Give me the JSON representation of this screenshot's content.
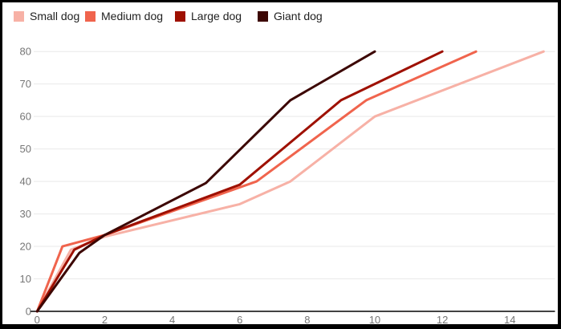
{
  "chart": {
    "background_color": "#ffffff",
    "frame_border_color": "#000000",
    "gridline_color": "#e9e9e9",
    "baseline_color": "#424242",
    "axis_text_color": "#757575",
    "legend_text_color": "#1f1f1f"
  },
  "chart_data": {
    "type": "line",
    "title": "",
    "xlabel": "",
    "ylabel": "",
    "legend_position": "top",
    "grid": "horizontal-only",
    "xlim": [
      0,
      15.35
    ],
    "ylim": [
      0,
      84.5
    ],
    "x_ticks": [
      0,
      2,
      4,
      6,
      8,
      10,
      12,
      14
    ],
    "y_ticks": [
      0,
      10,
      20,
      30,
      40,
      50,
      60,
      70,
      80
    ],
    "series": [
      {
        "name": "Small dog",
        "color": "#f7b1a6",
        "points": [
          [
            0,
            0
          ],
          [
            1,
            19
          ],
          [
            2,
            23
          ],
          [
            6,
            33
          ],
          [
            7.5,
            40
          ],
          [
            10,
            60
          ],
          [
            15,
            80
          ]
        ]
      },
      {
        "name": "Medium dog",
        "color": "#f0644d",
        "points": [
          [
            0,
            0
          ],
          [
            0.75,
            20
          ],
          [
            2,
            23.5
          ],
          [
            6.5,
            40
          ],
          [
            9.75,
            65
          ],
          [
            13,
            80
          ]
        ]
      },
      {
        "name": "Large dog",
        "color": "#9e1000",
        "points": [
          [
            0,
            0
          ],
          [
            1.1,
            19
          ],
          [
            2,
            23.5
          ],
          [
            6,
            39
          ],
          [
            9,
            65
          ],
          [
            12,
            80
          ]
        ]
      },
      {
        "name": "Giant dog",
        "color": "#3c0603",
        "points": [
          [
            0,
            0
          ],
          [
            1.25,
            18
          ],
          [
            2,
            23.5
          ],
          [
            5,
            39.5
          ],
          [
            7.5,
            65
          ],
          [
            10,
            80
          ]
        ]
      }
    ]
  }
}
